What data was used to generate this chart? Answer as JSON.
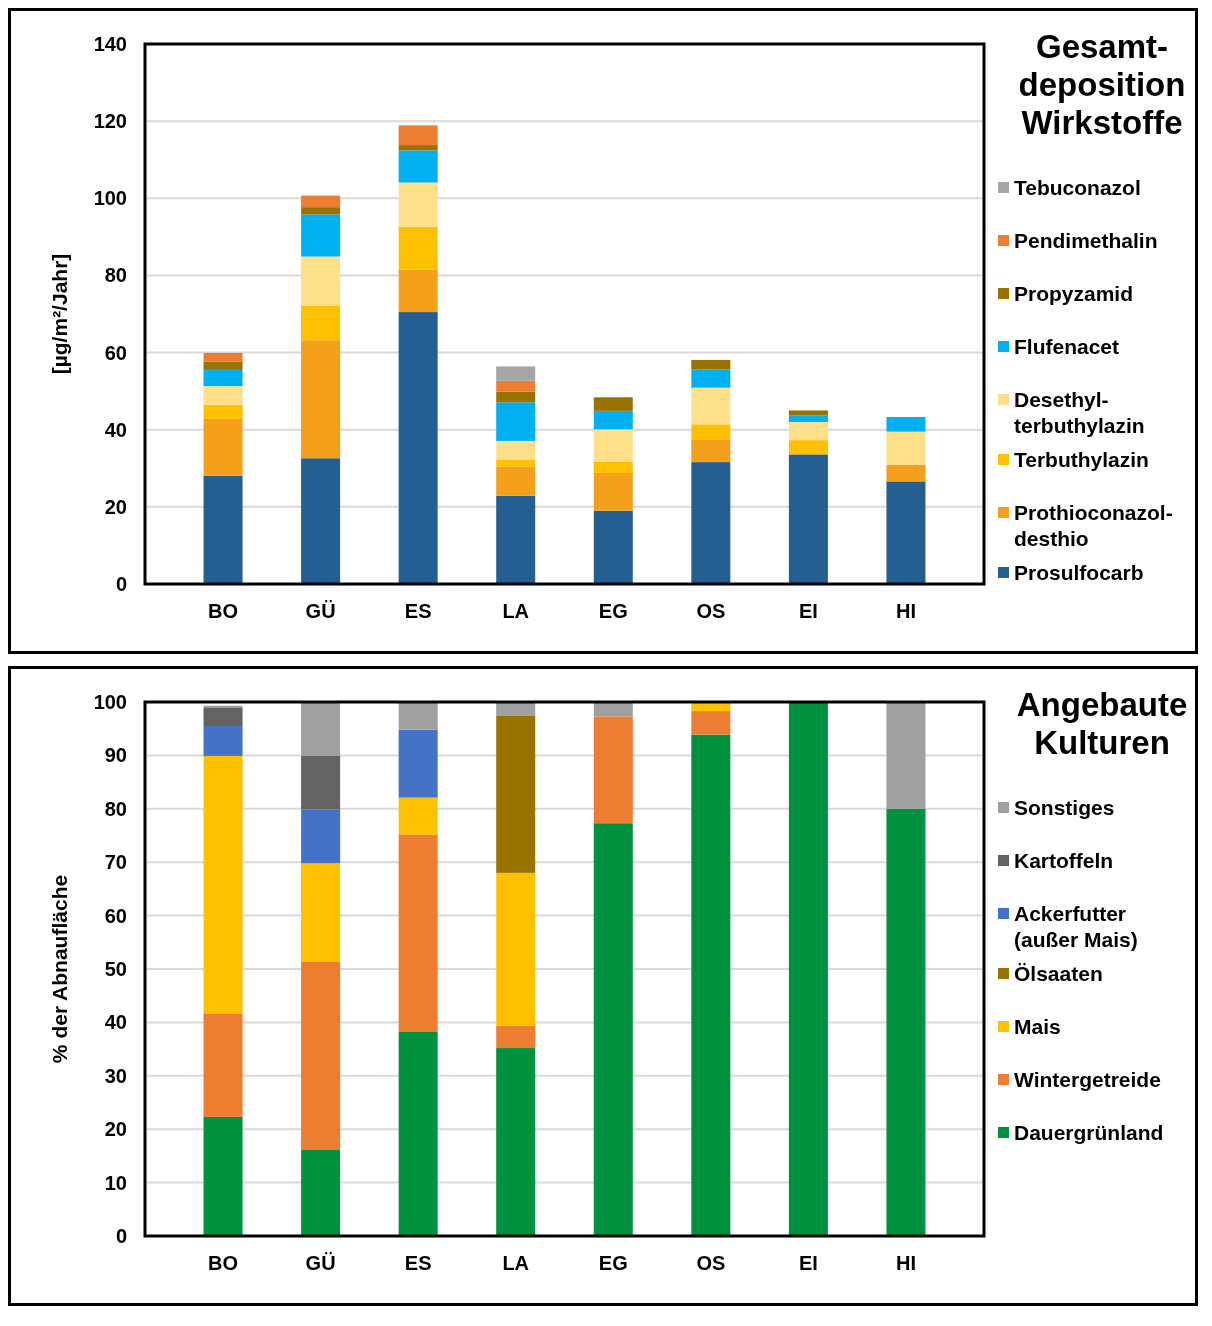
{
  "chart_data": [
    {
      "type": "bar",
      "stacked": true,
      "legend_title": "Gesamt-deposition Wirkstoffe",
      "ylabel": "[µg/m²/Jahr]",
      "categories": [
        "BO",
        "GÜ",
        "ES",
        "LA",
        "EG",
        "OS",
        "EI",
        "HI"
      ],
      "ylim": [
        0,
        140
      ],
      "yticks": [
        0,
        20,
        40,
        60,
        80,
        100,
        120,
        140
      ],
      "grid": "y",
      "legend": "right",
      "series": [
        {
          "name": "Prosulfocarb",
          "color": "#255e91",
          "values": [
            28.1,
            32.6,
            70.5,
            22.9,
            19.0,
            31.6,
            33.6,
            26.6
          ]
        },
        {
          "name": "Prothioconazol-desthio",
          "color": "#f5a01a",
          "values": [
            14.7,
            30.6,
            11.0,
            7.5,
            9.8,
            5.9,
            0,
            4.3
          ]
        },
        {
          "name": "Terbuthylazin",
          "color": "#ffc000",
          "values": [
            3.6,
            9.0,
            11.1,
            1.8,
            2.9,
            3.9,
            3.7,
            0
          ]
        },
        {
          "name": "Desethyl-terbuthylazin",
          "color": "#ffe08a",
          "values": [
            4.9,
            12.7,
            11.5,
            4.9,
            8.4,
            9.5,
            4.7,
            8.6
          ]
        },
        {
          "name": "Flufenacet",
          "color": "#00b0f0",
          "values": [
            4.2,
            10.9,
            8.3,
            10.0,
            4.8,
            4.7,
            1.7,
            3.8
          ]
        },
        {
          "name": "Propyzamid",
          "color": "#997300",
          "values": [
            2.2,
            1.9,
            1.4,
            2.8,
            3.5,
            2.5,
            1.3,
            0
          ]
        },
        {
          "name": "Pendimethalin",
          "color": "#ed7d31",
          "values": [
            2.2,
            3.0,
            5.1,
            2.8,
            0,
            0,
            0,
            0
          ]
        },
        {
          "name": "Tebuconazol",
          "color": "#a5a5a5",
          "values": [
            0,
            0,
            0,
            3.7,
            0,
            0,
            0,
            0
          ]
        }
      ]
    },
    {
      "type": "bar",
      "stacked": true,
      "legend_title": "Angebaute Kulturen",
      "ylabel": "% der Abnaufläche",
      "categories": [
        "BO",
        "GÜ",
        "ES",
        "LA",
        "EG",
        "OS",
        "EI",
        "HI"
      ],
      "ylim": [
        0,
        100
      ],
      "yticks": [
        0,
        10,
        20,
        30,
        40,
        50,
        60,
        70,
        80,
        90,
        100
      ],
      "grid": "y",
      "legend": "right",
      "series": [
        {
          "name": "Dauergrünland",
          "color": "#00923f",
          "values": [
            22.3,
            16.1,
            38.2,
            35.2,
            77.3,
            93.9,
            100,
            80
          ]
        },
        {
          "name": "Wintergetreide",
          "color": "#ed7d31",
          "values": [
            19.4,
            35.3,
            37.0,
            4.2,
            20.0,
            4.4,
            0,
            0
          ]
        },
        {
          "name": "Mais",
          "color": "#ffc000",
          "values": [
            48.2,
            18.4,
            6.9,
            28.6,
            0,
            1.7,
            0,
            0
          ]
        },
        {
          "name": "Ölsaaten",
          "color": "#997300",
          "values": [
            0,
            0,
            0,
            29.5,
            0,
            0,
            0,
            0
          ]
        },
        {
          "name": "Ackerfutter (außer Mais)",
          "color": "#4472c4",
          "values": [
            5.6,
            10.1,
            12.7,
            0,
            0,
            0,
            0,
            0
          ]
        },
        {
          "name": "Kartoffeln",
          "color": "#636363",
          "values": [
            3.5,
            10.0,
            0,
            0,
            0,
            0,
            0,
            0
          ]
        },
        {
          "name": "Sonstiges",
          "color": "#a0a0a0",
          "values": [
            0.3,
            10.1,
            5.2,
            2.5,
            2.7,
            0,
            0,
            20
          ]
        }
      ]
    }
  ]
}
